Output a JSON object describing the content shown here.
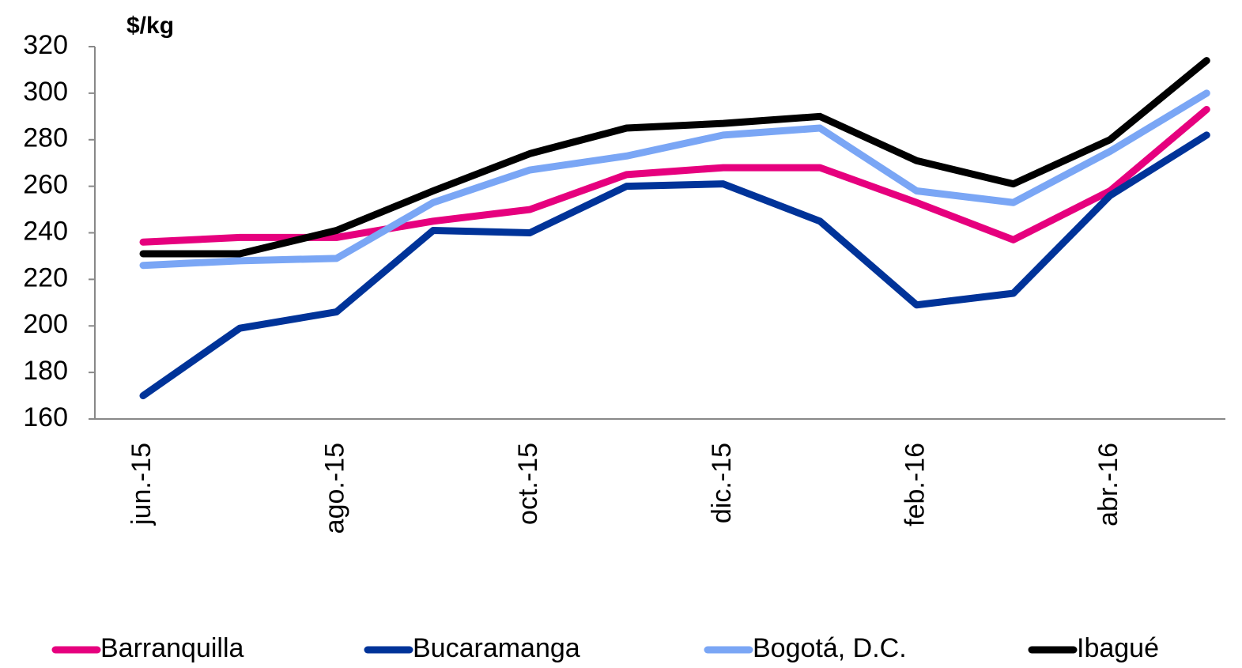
{
  "chart_data": {
    "type": "line",
    "y_label": "$/kg",
    "categories": [
      "jun.-15",
      null,
      "ago.-15",
      null,
      "oct.-15",
      null,
      "dic.-15",
      null,
      "feb.-16",
      null,
      "abr.-16",
      null
    ],
    "series": [
      {
        "name": "Barranquilla",
        "color": "#e6007e",
        "values": [
          236,
          238,
          238,
          245,
          250,
          265,
          268,
          268,
          253,
          237,
          258,
          293
        ]
      },
      {
        "name": "Bucaramanga",
        "color": "#003399",
        "values": [
          170,
          199,
          206,
          241,
          240,
          260,
          261,
          245,
          209,
          214,
          256,
          282
        ]
      },
      {
        "name": "Bogotá, D.C.",
        "color": "#7aa6f5",
        "values": [
          226,
          228,
          229,
          253,
          267,
          273,
          282,
          285,
          258,
          253,
          275,
          300
        ]
      },
      {
        "name": "Ibagué",
        "color": "#000000",
        "values": [
          231,
          231,
          241,
          258,
          274,
          285,
          287,
          290,
          271,
          261,
          280,
          314
        ]
      }
    ],
    "ylim": [
      160,
      320
    ],
    "yticks": [
      160,
      180,
      200,
      220,
      240,
      260,
      280,
      300,
      320
    ],
    "legend": "bottom"
  }
}
